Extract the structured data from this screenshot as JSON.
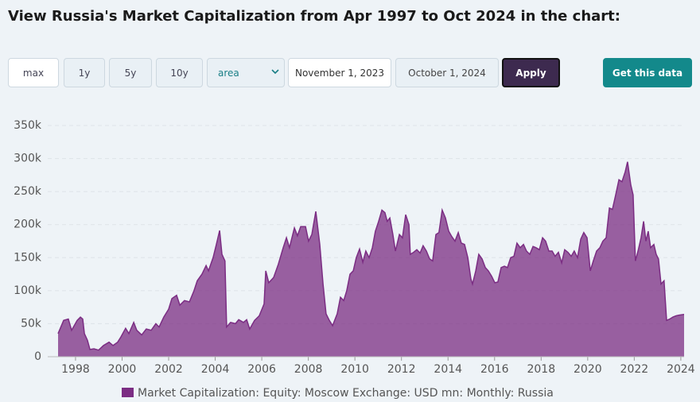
{
  "heading": "View Russia's Market Capitalization from Apr 1997 to Oct 2024 in the chart:",
  "controls": {
    "ranges": [
      "max",
      "1y",
      "5y",
      "10y"
    ],
    "chart_type": "area",
    "start_date": "November 1, 2023",
    "end_date": "October 1, 2024",
    "apply": "Apply",
    "get_data": "Get this data"
  },
  "chart_data": {
    "type": "area",
    "grid": true,
    "xlim": [
      1997.25,
      2024.14
    ],
    "xticks": [
      1998,
      2000,
      2002,
      2004,
      2006,
      2008,
      2010,
      2012,
      2014,
      2016,
      2018,
      2020,
      2022,
      2024
    ],
    "ylim": [
      0,
      350000
    ],
    "yticks": [
      0,
      {
        "value": 50000,
        "label": "50k"
      },
      {
        "value": 100000,
        "label": "100k"
      },
      {
        "value": 150000,
        "label": "150k"
      },
      {
        "value": 200000,
        "label": "200k"
      },
      {
        "value": 250000,
        "label": "250k"
      },
      {
        "value": 300000,
        "label": "300k"
      },
      {
        "value": 350000,
        "label": "350k"
      }
    ],
    "x": [
      1997.25,
      1997.49,
      1997.69,
      1997.83,
      1998.07,
      1998.21,
      1998.31,
      1998.38,
      1998.51,
      1998.62,
      1998.79,
      1998.99,
      1999.2,
      1999.44,
      1999.61,
      1999.81,
      1999.95,
      2000.15,
      2000.29,
      2000.5,
      2000.63,
      2000.84,
      2001.04,
      2001.25,
      2001.45,
      2001.59,
      2001.79,
      2002.0,
      2002.14,
      2002.34,
      2002.48,
      2002.68,
      2002.89,
      2003.09,
      2003.23,
      2003.43,
      2003.61,
      2003.71,
      2003.91,
      2004.05,
      2004.19,
      2004.29,
      2004.42,
      2004.49,
      2004.66,
      2004.87,
      2005.01,
      2005.21,
      2005.35,
      2005.48,
      2005.69,
      2005.89,
      2006.1,
      2006.17,
      2006.3,
      2006.51,
      2006.71,
      2006.92,
      2007.06,
      2007.19,
      2007.4,
      2007.53,
      2007.67,
      2007.88,
      2008.01,
      2008.15,
      2008.32,
      2008.49,
      2008.63,
      2008.76,
      2008.9,
      2009.04,
      2009.24,
      2009.38,
      2009.52,
      2009.65,
      2009.79,
      2009.93,
      2010.06,
      2010.2,
      2010.34,
      2010.47,
      2010.61,
      2010.75,
      2010.88,
      2011.02,
      2011.16,
      2011.29,
      2011.39,
      2011.5,
      2011.63,
      2011.74,
      2011.91,
      2012.04,
      2012.18,
      2012.32,
      2012.38,
      2012.52,
      2012.66,
      2012.8,
      2012.93,
      2013.07,
      2013.21,
      2013.34,
      2013.48,
      2013.61,
      2013.75,
      2013.89,
      2014.03,
      2014.16,
      2014.3,
      2014.44,
      2014.57,
      2014.71,
      2014.85,
      2014.98,
      2015.05,
      2015.19,
      2015.32,
      2015.46,
      2015.6,
      2015.73,
      2015.87,
      2016.01,
      2016.14,
      2016.28,
      2016.42,
      2016.55,
      2016.69,
      2016.83,
      2016.96,
      2017.1,
      2017.24,
      2017.37,
      2017.51,
      2017.65,
      2017.78,
      2017.92,
      2018.06,
      2018.19,
      2018.33,
      2018.47,
      2018.6,
      2018.74,
      2018.88,
      2019.01,
      2019.15,
      2019.29,
      2019.42,
      2019.56,
      2019.7,
      2019.83,
      2019.97,
      2020.11,
      2020.24,
      2020.38,
      2020.52,
      2020.65,
      2020.79,
      2020.93,
      2021.06,
      2021.2,
      2021.34,
      2021.47,
      2021.61,
      2021.71,
      2021.85,
      2021.95,
      2022.05,
      2022.16,
      2022.29,
      2022.4,
      2022.5,
      2022.6,
      2022.7,
      2022.84,
      2022.94,
      2023.04,
      2023.15,
      2023.28,
      2023.39,
      2023.52,
      2023.66,
      2023.8,
      2023.93,
      2024.14
    ],
    "series": [
      {
        "name": "Market Capitalization: Equity: Moscow Exchange: USD mn: Monthly: Russia",
        "color": "#7b2d83",
        "values": [
          35000,
          55000,
          57000,
          40000,
          55000,
          60000,
          57000,
          35000,
          25000,
          11000,
          12000,
          10000,
          17000,
          22000,
          17000,
          22000,
          30000,
          43000,
          35000,
          52000,
          40000,
          33000,
          42000,
          40000,
          50000,
          45000,
          60000,
          72000,
          88000,
          93000,
          78000,
          85000,
          83000,
          100000,
          115000,
          125000,
          138000,
          130000,
          150000,
          170000,
          191000,
          155000,
          145000,
          45000,
          52000,
          50000,
          56000,
          52000,
          56000,
          42000,
          55000,
          62000,
          80000,
          130000,
          112000,
          120000,
          140000,
          165000,
          180000,
          165000,
          195000,
          183000,
          197000,
          197000,
          175000,
          185000,
          220000,
          170000,
          110000,
          65000,
          55000,
          47000,
          65000,
          90000,
          85000,
          100000,
          125000,
          130000,
          150000,
          163000,
          143000,
          160000,
          150000,
          165000,
          190000,
          205000,
          222000,
          218000,
          205000,
          210000,
          185000,
          160000,
          185000,
          180000,
          215000,
          200000,
          155000,
          158000,
          162000,
          157000,
          168000,
          160000,
          148000,
          145000,
          185000,
          188000,
          222000,
          210000,
          190000,
          182000,
          175000,
          188000,
          172000,
          170000,
          150000,
          118000,
          110000,
          130000,
          155000,
          148000,
          135000,
          130000,
          122000,
          112000,
          113000,
          135000,
          137000,
          135000,
          150000,
          152000,
          172000,
          165000,
          170000,
          160000,
          155000,
          167000,
          165000,
          162000,
          180000,
          175000,
          160000,
          160000,
          152000,
          158000,
          142000,
          162000,
          158000,
          152000,
          160000,
          150000,
          178000,
          188000,
          180000,
          130000,
          145000,
          160000,
          165000,
          175000,
          180000,
          225000,
          223000,
          245000,
          268000,
          265000,
          280000,
          295000,
          260000,
          245000,
          145000,
          160000,
          180000,
          205000,
          175000,
          190000,
          165000,
          170000,
          155000,
          148000,
          110000,
          115000,
          55000,
          57000,
          60000,
          62000,
          63000,
          64000
        ]
      }
    ]
  }
}
